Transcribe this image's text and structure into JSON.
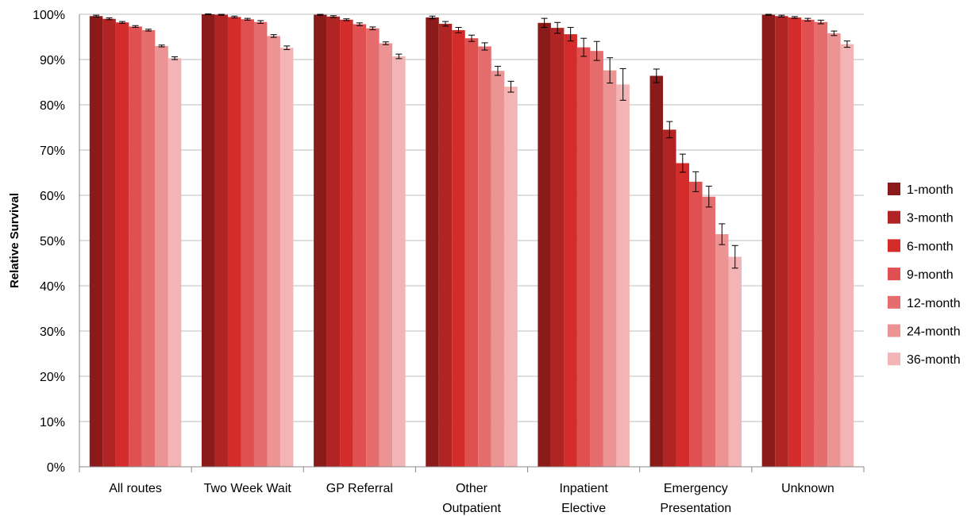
{
  "chart_data": {
    "type": "bar",
    "ylabel": "Relative Survival",
    "ylim": [
      0,
      100
    ],
    "y_ticks": [
      "0%",
      "10%",
      "20%",
      "30%",
      "40%",
      "50%",
      "60%",
      "70%",
      "80%",
      "90%",
      "100%"
    ],
    "categories": [
      [
        "All routes"
      ],
      [
        "Two Week Wait"
      ],
      [
        "GP Referral"
      ],
      [
        "Other",
        "Outpatient"
      ],
      [
        "Inpatient",
        "Elective"
      ],
      [
        "Emergency",
        "Presentation"
      ],
      [
        "Unknown"
      ]
    ],
    "legend_position": "right",
    "series": [
      {
        "name": "1-month",
        "color": "#8b1a1a",
        "values": [
          99.6,
          100.0,
          99.9,
          99.3,
          98.1,
          86.4,
          99.9
        ],
        "errors": [
          0.2,
          0.1,
          0.1,
          0.3,
          1.0,
          1.5,
          0.1
        ]
      },
      {
        "name": "3-month",
        "color": "#b02424",
        "values": [
          99.0,
          99.9,
          99.5,
          97.9,
          97.0,
          74.5,
          99.6
        ],
        "errors": [
          0.2,
          0.1,
          0.2,
          0.5,
          1.2,
          1.8,
          0.2
        ]
      },
      {
        "name": "6-month",
        "color": "#d42b2b",
        "values": [
          98.2,
          99.4,
          98.8,
          96.5,
          95.6,
          67.1,
          99.3
        ],
        "errors": [
          0.2,
          0.2,
          0.2,
          0.6,
          1.5,
          2.0,
          0.2
        ]
      },
      {
        "name": "9-month",
        "color": "#e05050",
        "values": [
          97.3,
          98.9,
          97.8,
          94.7,
          92.7,
          63.0,
          98.8
        ],
        "errors": [
          0.2,
          0.2,
          0.3,
          0.7,
          2.0,
          2.2,
          0.3
        ]
      },
      {
        "name": "12-month",
        "color": "#e56d6d",
        "values": [
          96.5,
          98.3,
          96.9,
          92.9,
          91.9,
          59.7,
          98.3
        ],
        "errors": [
          0.2,
          0.3,
          0.3,
          0.8,
          2.1,
          2.3,
          0.4
        ]
      },
      {
        "name": "24-month",
        "color": "#ec9494",
        "values": [
          93.0,
          95.2,
          93.6,
          87.5,
          87.6,
          51.4,
          95.8
        ],
        "errors": [
          0.2,
          0.3,
          0.3,
          1.0,
          2.8,
          2.3,
          0.5
        ]
      },
      {
        "name": "36-month",
        "color": "#f2b4b4",
        "values": [
          90.3,
          92.6,
          90.7,
          84.0,
          84.5,
          46.4,
          93.4
        ],
        "errors": [
          0.3,
          0.4,
          0.5,
          1.2,
          3.5,
          2.5,
          0.7
        ]
      }
    ]
  }
}
